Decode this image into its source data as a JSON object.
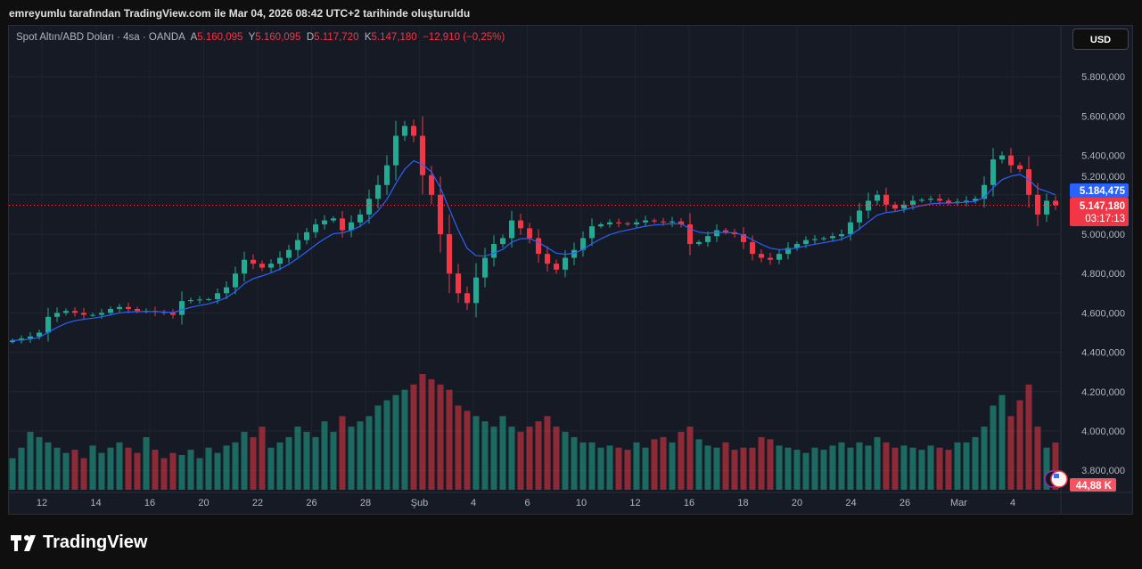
{
  "caption": "emreyumlu tarafından TradingView.com ile Mar 04, 2026 08:42 UTC+2 tarihinde oluşturuldu",
  "legend": {
    "symbol": "Spot Altın/ABD Doları · 4sa · OANDA",
    "o_label": "A",
    "o": "5.160,095",
    "h_label": "Y",
    "h": "5.160,095",
    "l_label": "D",
    "l": "5.117,720",
    "c_label": "K",
    "c": "5.147,180",
    "change": "−12,910 (−0,25%)"
  },
  "currency_button": "USD",
  "logo_text": "TradingView",
  "colors": {
    "up": "#22ab94",
    "down": "#f23645",
    "ma": "#2962ff",
    "background": "#161a25"
  },
  "chart_data": {
    "type": "candlestick",
    "ylim": [
      3700000,
      5900000
    ],
    "yticks": [
      "5.800,000",
      "5.600,000",
      "5.400,000",
      "5.200,000",
      "5.000,000",
      "4.800,000",
      "4.600,000",
      "4.400,000",
      "4.200,000",
      "4.000,000",
      "3.800,000"
    ],
    "ytick_values": [
      5800000,
      5600000,
      5400000,
      5200000,
      5000000,
      4800000,
      4600000,
      4400000,
      4200000,
      4000000,
      3800000
    ],
    "xticks": [
      "12",
      "14",
      "16",
      "20",
      "22",
      "26",
      "28",
      "Şub",
      "4",
      "6",
      "10",
      "12",
      "16",
      "18",
      "20",
      "24",
      "26",
      "Mar",
      "4"
    ],
    "close": [
      4460,
      4470,
      4480,
      4500,
      4580,
      4600,
      4610,
      4600,
      4590,
      4590,
      4600,
      4620,
      4630,
      4620,
      4610,
      4610,
      4605,
      4600,
      4590,
      4660,
      4665,
      4668,
      4670,
      4700,
      4730,
      4800,
      4870,
      4850,
      4830,
      4850,
      4880,
      4920,
      4970,
      5010,
      5050,
      5070,
      5080,
      5020,
      5060,
      5100,
      5180,
      5250,
      5350,
      5500,
      5550,
      5500,
      5300,
      5200,
      5000,
      4800,
      4700,
      4650,
      4780,
      4880,
      4950,
      4980,
      5070,
      5030,
      4980,
      4900,
      4850,
      4820,
      4880,
      4920,
      4980,
      5040,
      5050,
      5060,
      5055,
      5050,
      5060,
      5070,
      5065,
      5060,
      5065,
      5050,
      4950,
      4960,
      4990,
      5020,
      5010,
      5000,
      4960,
      4900,
      4880,
      4870,
      4900,
      4930,
      4950,
      4970,
      4975,
      4980,
      4990,
      5000,
      5060,
      5120,
      5170,
      5200,
      5150,
      5130,
      5150,
      5170,
      5175,
      5180,
      5170,
      5160,
      5165,
      5170,
      5180,
      5250,
      5380,
      5400,
      5350,
      5330,
      5200,
      5100,
      5170,
      5147.18
    ],
    "close_unit": "thousand USD",
    "volume_k": [
      30,
      40,
      55,
      50,
      45,
      40,
      35,
      38,
      30,
      42,
      35,
      40,
      45,
      40,
      35,
      50,
      38,
      30,
      35,
      33,
      38,
      30,
      40,
      35,
      42,
      45,
      55,
      50,
      60,
      40,
      45,
      50,
      60,
      55,
      50,
      65,
      55,
      70,
      60,
      65,
      70,
      80,
      85,
      90,
      95,
      100,
      110,
      105,
      100,
      95,
      80,
      75,
      70,
      65,
      60,
      70,
      60,
      55,
      60,
      65,
      70,
      60,
      55,
      50,
      45,
      45,
      40,
      42,
      40,
      38,
      45,
      40,
      48,
      50,
      45,
      55,
      60,
      48,
      42,
      40,
      45,
      38,
      40,
      40,
      50,
      48,
      42,
      40,
      38,
      35,
      40,
      38,
      42,
      45,
      40,
      45,
      42,
      50,
      45,
      40,
      42,
      40,
      38,
      42,
      40,
      38,
      45,
      45,
      50,
      60,
      80,
      90,
      70,
      85,
      100,
      60,
      40,
      44.88
    ],
    "last_price_label": "5.147,180",
    "countdown": "03:17:13",
    "ma_label": "5.184,475",
    "volume_label": "44,88 K",
    "grid": true
  }
}
